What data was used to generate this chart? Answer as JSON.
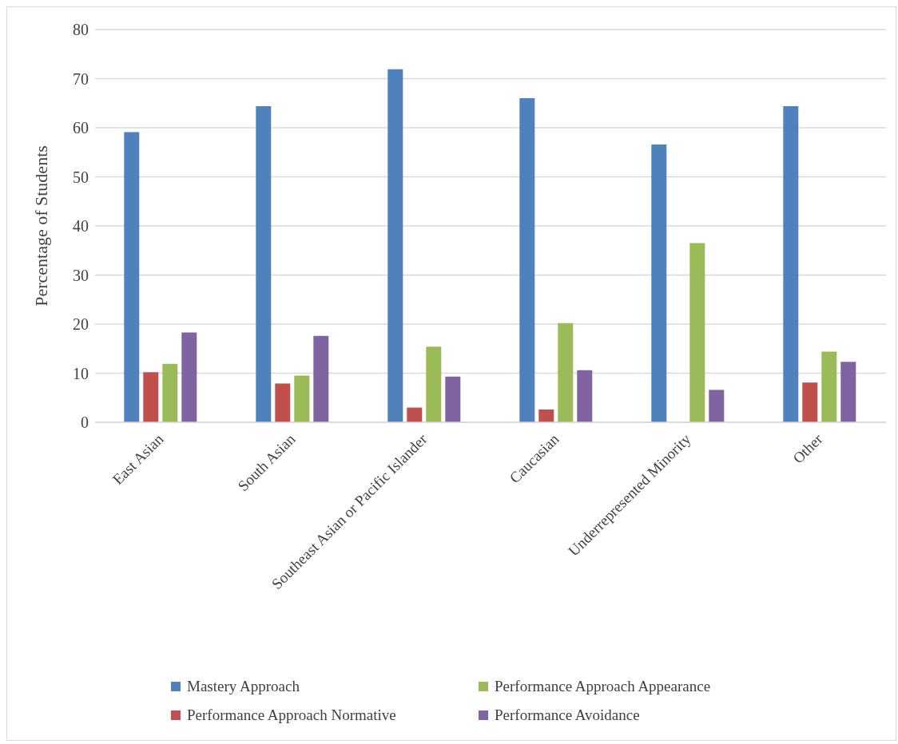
{
  "chart_data": {
    "type": "bar",
    "ylabel": "Percentage of Students",
    "categories": [
      "East Asian",
      "South Asian",
      "Southeast Asian or Pacific Islander",
      "Caucasian",
      "Underrepresented Minority",
      "Other"
    ],
    "series": [
      {
        "name": "Mastery Approach",
        "color": "#4f81bd",
        "values": [
          59.1,
          64.4,
          71.9,
          66.0,
          56.6,
          64.4
        ]
      },
      {
        "name": "Performance Approach Normative",
        "color": "#c0504d",
        "values": [
          10.2,
          7.9,
          3.0,
          2.6,
          0,
          8.1
        ]
      },
      {
        "name": "Performance Approach Appearance",
        "color": "#9bbb59",
        "values": [
          11.9,
          9.5,
          15.4,
          20.2,
          36.5,
          14.4
        ]
      },
      {
        "name": "Performance Avoidance",
        "color": "#8064a2",
        "values": [
          18.3,
          17.6,
          9.3,
          10.6,
          6.6,
          12.3
        ]
      }
    ],
    "ylim": [
      0,
      80
    ],
    "yticks": [
      0,
      10,
      20,
      30,
      40,
      50,
      60,
      70,
      80
    ],
    "grid": "y",
    "legend": "bottom"
  }
}
